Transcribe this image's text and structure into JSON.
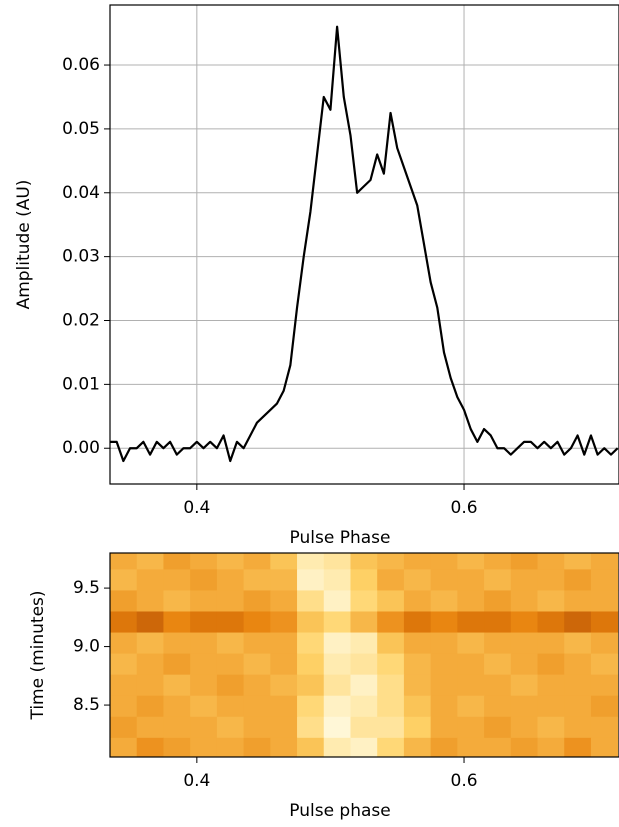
{
  "chart_data": [
    {
      "type": "line",
      "x_label": "Pulse Phase",
      "y_label": "Amplitude (AU)",
      "grid": true,
      "xlim": [
        0.335,
        0.716
      ],
      "ylim": [
        -0.0056,
        0.0694
      ],
      "xticks": [
        0.4,
        0.6
      ],
      "yticks": [
        {
          "value": 0,
          "label": "0.00"
        },
        0.01,
        0.02,
        0.03,
        0.04,
        0.05,
        0.06
      ],
      "series": [
        {
          "color": "#000000",
          "x": [
            0.335,
            0.34,
            0.345,
            0.35,
            0.355,
            0.36,
            0.365,
            0.37,
            0.375,
            0.38,
            0.385,
            0.39,
            0.395,
            0.4,
            0.405,
            0.41,
            0.415,
            0.42,
            0.425,
            0.43,
            0.435,
            0.44,
            0.445,
            0.45,
            0.455,
            0.46,
            0.465,
            0.47,
            0.475,
            0.48,
            0.485,
            0.49,
            0.495,
            0.5,
            0.505,
            0.51,
            0.515,
            0.52,
            0.525,
            0.53,
            0.535,
            0.54,
            0.545,
            0.55,
            0.555,
            0.56,
            0.565,
            0.57,
            0.575,
            0.58,
            0.585,
            0.59,
            0.595,
            0.6,
            0.605,
            0.61,
            0.615,
            0.62,
            0.625,
            0.63,
            0.635,
            0.64,
            0.645,
            0.65,
            0.655,
            0.66,
            0.665,
            0.67,
            0.675,
            0.68,
            0.685,
            0.69,
            0.695,
            0.7,
            0.705,
            0.71,
            0.715
          ],
          "values": [
            0.001,
            0.001,
            -0.002,
            0.0,
            0.0,
            0.001,
            -0.001,
            0.001,
            0.0,
            0.001,
            -0.001,
            0.0,
            0.0,
            0.001,
            0.0,
            0.001,
            0.0,
            0.002,
            -0.002,
            0.001,
            0.0,
            0.002,
            0.004,
            0.005,
            0.006,
            0.007,
            0.009,
            0.013,
            0.022,
            0.03,
            0.037,
            0.046,
            0.055,
            0.053,
            0.066,
            0.055,
            0.049,
            0.04,
            0.041,
            0.042,
            0.046,
            0.043,
            0.0525,
            0.047,
            0.044,
            0.041,
            0.038,
            0.032,
            0.026,
            0.022,
            0.015,
            0.011,
            0.008,
            0.006,
            0.003,
            0.001,
            0.003,
            0.002,
            0.0,
            0.0,
            -0.001,
            0.0,
            0.001,
            0.001,
            0.0,
            0.001,
            0.0,
            0.001,
            -0.001,
            0.0,
            0.002,
            -0.001,
            0.002,
            -0.001,
            0.0,
            -0.001,
            0.0
          ]
        }
      ]
    },
    {
      "type": "heatmap",
      "x_label": "Pulse phase",
      "y_label": "Time (minutes)",
      "xlim": [
        0.335,
        0.716
      ],
      "ylim": [
        8.056,
        9.8
      ],
      "xticks": [
        0.4,
        0.6
      ],
      "yticks": [
        8.5,
        {
          "value": 9.0,
          "label": "9.0"
        },
        9.5
      ],
      "colormap": [
        "#7a1500",
        "#e8820c",
        "#ffd46a",
        "#fffdea"
      ],
      "clim": [
        0,
        1
      ],
      "x": [
        0.345,
        0.365,
        0.385,
        0.405,
        0.425,
        0.445,
        0.465,
        0.485,
        0.505,
        0.525,
        0.545,
        0.565,
        0.585,
        0.605,
        0.625,
        0.645,
        0.665,
        0.685,
        0.705
      ],
      "y": [
        9.75,
        9.57,
        9.39,
        9.21,
        9.03,
        8.85,
        8.67,
        8.49,
        8.31,
        8.13
      ],
      "values": [
        [
          0.5,
          0.55,
          0.45,
          0.5,
          0.55,
          0.5,
          0.6,
          0.85,
          0.8,
          0.6,
          0.55,
          0.5,
          0.5,
          0.55,
          0.5,
          0.45,
          0.5,
          0.55,
          0.5
        ],
        [
          0.55,
          0.5,
          0.5,
          0.45,
          0.5,
          0.55,
          0.55,
          0.9,
          0.85,
          0.65,
          0.5,
          0.55,
          0.5,
          0.5,
          0.55,
          0.5,
          0.5,
          0.45,
          0.5
        ],
        [
          0.45,
          0.5,
          0.55,
          0.5,
          0.5,
          0.45,
          0.5,
          0.75,
          0.9,
          0.7,
          0.6,
          0.5,
          0.55,
          0.5,
          0.45,
          0.5,
          0.55,
          0.5,
          0.5
        ],
        [
          0.3,
          0.25,
          0.35,
          0.3,
          0.3,
          0.35,
          0.4,
          0.6,
          0.7,
          0.55,
          0.4,
          0.3,
          0.35,
          0.3,
          0.3,
          0.35,
          0.3,
          0.25,
          0.3
        ],
        [
          0.5,
          0.55,
          0.5,
          0.5,
          0.55,
          0.5,
          0.5,
          0.7,
          0.9,
          0.85,
          0.6,
          0.5,
          0.5,
          0.55,
          0.5,
          0.5,
          0.5,
          0.55,
          0.5
        ],
        [
          0.55,
          0.5,
          0.45,
          0.5,
          0.5,
          0.55,
          0.5,
          0.65,
          0.85,
          0.8,
          0.7,
          0.55,
          0.5,
          0.5,
          0.55,
          0.5,
          0.45,
          0.5,
          0.55
        ],
        [
          0.5,
          0.5,
          0.55,
          0.5,
          0.45,
          0.5,
          0.55,
          0.6,
          0.8,
          0.9,
          0.75,
          0.55,
          0.5,
          0.5,
          0.5,
          0.55,
          0.5,
          0.5,
          0.5
        ],
        [
          0.5,
          0.45,
          0.5,
          0.55,
          0.5,
          0.5,
          0.5,
          0.7,
          0.9,
          0.85,
          0.75,
          0.6,
          0.5,
          0.55,
          0.5,
          0.5,
          0.5,
          0.5,
          0.45
        ],
        [
          0.45,
          0.5,
          0.5,
          0.5,
          0.55,
          0.5,
          0.5,
          0.75,
          0.95,
          0.8,
          0.8,
          0.65,
          0.5,
          0.5,
          0.45,
          0.5,
          0.55,
          0.5,
          0.5
        ],
        [
          0.5,
          0.4,
          0.45,
          0.5,
          0.5,
          0.45,
          0.5,
          0.6,
          0.85,
          0.9,
          0.7,
          0.55,
          0.45,
          0.5,
          0.5,
          0.45,
          0.5,
          0.4,
          0.5
        ]
      ]
    }
  ]
}
